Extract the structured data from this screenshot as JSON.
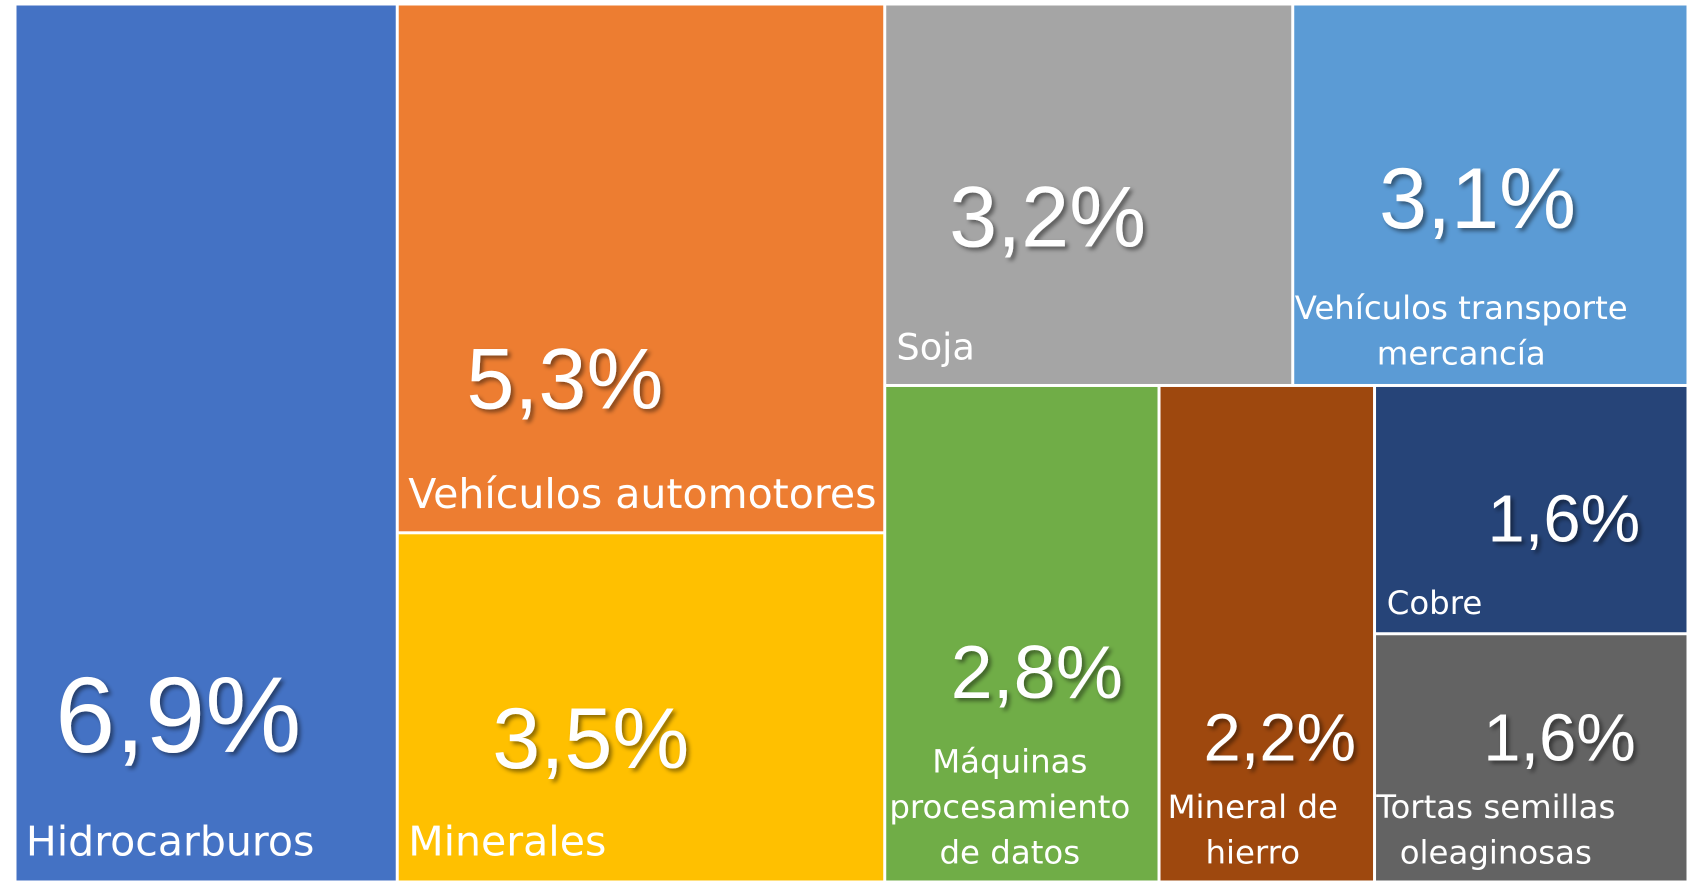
{
  "chart_data": {
    "type": "treemap",
    "categories": [
      "Hidrocarburos",
      "Vehículos automotores",
      "Minerales",
      "Soja",
      "Vehículos transporte mercancía",
      "Máquinas procesamiento de datos",
      "Mineral de hierro",
      "Cobre",
      "Tortas semillas oleaginosas"
    ],
    "values": [
      6.9,
      5.3,
      3.5,
      3.2,
      3.1,
      2.8,
      2.2,
      1.6,
      1.6
    ],
    "value_labels": [
      "6,9%",
      "5,3%",
      "3,5%",
      "3,2%",
      "3,1%",
      "2,8%",
      "2,2%",
      "1,6%",
      "1,6%"
    ],
    "colors": [
      "#4472c4",
      "#ed7d31",
      "#ffc000",
      "#a5a5a5",
      "#5b9bd5",
      "#70ad47",
      "#9e480e",
      "#264478",
      "#636363"
    ]
  }
}
